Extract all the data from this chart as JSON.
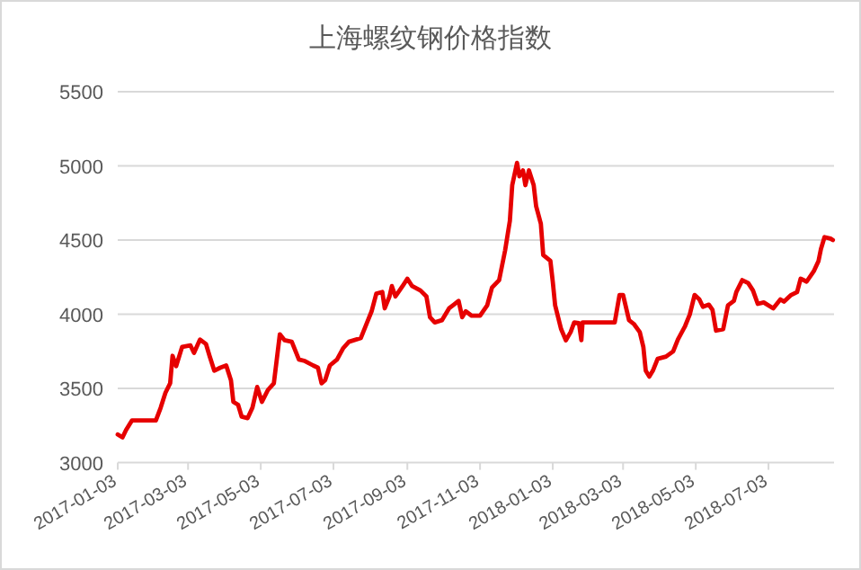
{
  "chart_data": {
    "type": "line",
    "title": "上海螺纹钢价格指数",
    "x": [
      "2017-01-03",
      "2017-01-07",
      "2017-01-10",
      "2017-01-15",
      "2017-02-04",
      "2017-02-08",
      "2017-02-12",
      "2017-02-16",
      "2017-02-18",
      "2017-02-21",
      "2017-02-26",
      "2017-03-05",
      "2017-03-08",
      "2017-03-13",
      "2017-03-18",
      "2017-03-21",
      "2017-03-25",
      "2017-03-30",
      "2017-04-04",
      "2017-04-08",
      "2017-04-10",
      "2017-04-14",
      "2017-04-17",
      "2017-04-22",
      "2017-04-26",
      "2017-04-30",
      "2017-05-04",
      "2017-05-09",
      "2017-05-14",
      "2017-05-19",
      "2017-05-23",
      "2017-05-29",
      "2017-06-04",
      "2017-06-09",
      "2017-06-16",
      "2017-06-20",
      "2017-06-23",
      "2017-06-26",
      "2017-06-30",
      "2017-07-06",
      "2017-07-11",
      "2017-07-16",
      "2017-07-26",
      "2017-07-31",
      "2017-08-04",
      "2017-08-08",
      "2017-08-13",
      "2017-08-15",
      "2017-08-19",
      "2017-08-21",
      "2017-08-24",
      "2017-08-30",
      "2017-09-03",
      "2017-09-07",
      "2017-09-14",
      "2017-09-19",
      "2017-09-22",
      "2017-09-26",
      "2017-10-02",
      "2017-10-08",
      "2017-10-12",
      "2017-10-16",
      "2017-10-19",
      "2017-10-22",
      "2017-10-27",
      "2017-11-03",
      "2017-11-09",
      "2017-11-13",
      "2017-11-19",
      "2017-11-24",
      "2017-11-28",
      "2017-11-30",
      "2017-12-04",
      "2017-12-06",
      "2017-12-09",
      "2017-12-11",
      "2017-12-14",
      "2017-12-18",
      "2017-12-20",
      "2017-12-24",
      "2017-12-26",
      "2018-01-01",
      "2018-01-03",
      "2018-01-05",
      "2018-01-10",
      "2018-01-14",
      "2018-01-18",
      "2018-01-21",
      "2018-01-25",
      "2018-01-27",
      "2018-01-28",
      "2018-02-24",
      "2018-02-28",
      "2018-03-03",
      "2018-03-08",
      "2018-03-12",
      "2018-03-17",
      "2018-03-20",
      "2018-03-22",
      "2018-03-25",
      "2018-03-28",
      "2018-04-01",
      "2018-04-08",
      "2018-04-14",
      "2018-04-18",
      "2018-04-24",
      "2018-04-28",
      "2018-05-02",
      "2018-05-06",
      "2018-05-09",
      "2018-05-14",
      "2018-05-17",
      "2018-05-20",
      "2018-05-26",
      "2018-05-30",
      "2018-06-04",
      "2018-06-06",
      "2018-06-11",
      "2018-06-16",
      "2018-06-20",
      "2018-06-24",
      "2018-06-29",
      "2018-07-07",
      "2018-07-13",
      "2018-07-16",
      "2018-07-22",
      "2018-07-27",
      "2018-07-30",
      "2018-08-04",
      "2018-08-10",
      "2018-08-14",
      "2018-08-16",
      "2018-08-19",
      "2018-08-24",
      "2018-08-26"
    ],
    "series": [
      {
        "color": "#e60000",
        "values": [
          3190,
          3170,
          3220,
          3285,
          3285,
          3370,
          3470,
          3535,
          3720,
          3650,
          3780,
          3790,
          3740,
          3830,
          3800,
          3720,
          3620,
          3640,
          3655,
          3555,
          3410,
          3390,
          3310,
          3300,
          3370,
          3510,
          3410,
          3490,
          3535,
          3865,
          3825,
          3815,
          3695,
          3685,
          3655,
          3640,
          3535,
          3555,
          3655,
          3695,
          3770,
          3815,
          3840,
          3940,
          4020,
          4140,
          4150,
          4040,
          4120,
          4190,
          4120,
          4190,
          4240,
          4190,
          4160,
          4120,
          3980,
          3945,
          3960,
          4040,
          4065,
          4090,
          3980,
          4020,
          3990,
          3990,
          4060,
          4180,
          4230,
          4430,
          4630,
          4870,
          5020,
          4930,
          4970,
          4870,
          4970,
          4870,
          4730,
          4610,
          4400,
          4360,
          4220,
          4060,
          3900,
          3825,
          3880,
          3945,
          3940,
          3825,
          3945,
          3945,
          4130,
          4130,
          3960,
          3935,
          3880,
          3780,
          3620,
          3580,
          3620,
          3700,
          3715,
          3750,
          3830,
          3920,
          4000,
          4130,
          4100,
          4050,
          4065,
          4030,
          3890,
          3900,
          4060,
          4090,
          4150,
          4230,
          4210,
          4160,
          4070,
          4080,
          4040,
          4100,
          4085,
          4130,
          4150,
          4240,
          4220,
          4290,
          4360,
          4440,
          4520,
          4510,
          4500
        ]
      }
    ],
    "xlim": [
      "2017-01-03",
      "2018-08-27"
    ],
    "xticks": [
      "2017-01-03",
      "2017-03-03",
      "2017-05-03",
      "2017-07-03",
      "2017-09-03",
      "2017-11-03",
      "2018-01-03",
      "2018-03-03",
      "2018-05-03",
      "2018-07-03"
    ],
    "ylim": [
      3000,
      5500
    ],
    "yticks": [
      3000,
      3500,
      4000,
      4500,
      5000,
      5500
    ],
    "grid": "y"
  }
}
